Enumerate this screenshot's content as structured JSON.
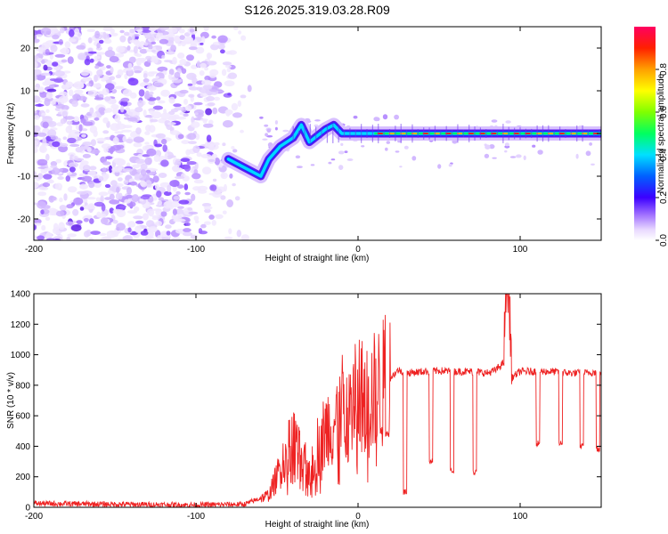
{
  "title": "S126.2025.319.03.28.R09",
  "chart_data": [
    {
      "id": "spectrogram",
      "type": "heatmap",
      "xlabel": "Height of straight line (km)",
      "ylabel": "Frequency (Hz)",
      "xlim": [
        -200,
        150
      ],
      "ylim": [
        -25,
        25
      ],
      "xticks": [
        -200,
        -100,
        0,
        100
      ],
      "yticks": [
        -20,
        -10,
        0,
        10,
        20
      ],
      "colorbar": {
        "label": "Normalized spectral amplitude",
        "range": [
          0,
          1
        ],
        "ticks": [
          0.0,
          0.2,
          0.4,
          0.6,
          0.8
        ],
        "tick_labels": [
          "0.0",
          "0.2",
          "0.4",
          "0.6",
          "0.8"
        ]
      },
      "noise_region": {
        "x_range": [
          -200,
          -65
        ],
        "y_range": [
          -25,
          25
        ],
        "amplitude_range": [
          0.0,
          0.15
        ]
      },
      "signal_track": [
        {
          "x": -80,
          "y": -6
        },
        {
          "x": -70,
          "y": -8
        },
        {
          "x": -60,
          "y": -10
        },
        {
          "x": -55,
          "y": -6
        },
        {
          "x": -48,
          "y": -3
        },
        {
          "x": -40,
          "y": -1
        },
        {
          "x": -35,
          "y": 2
        },
        {
          "x": -30,
          "y": -2
        },
        {
          "x": -20,
          "y": 1
        },
        {
          "x": -15,
          "y": 2
        },
        {
          "x": -10,
          "y": 0
        },
        {
          "x": 0,
          "y": 0
        },
        {
          "x": 10,
          "y": 0
        },
        {
          "x": 88,
          "y": 0
        },
        {
          "x": 150,
          "y": 0
        }
      ]
    },
    {
      "id": "snr",
      "type": "line",
      "xlabel": "Height of straight line (km)",
      "ylabel": "SNR (10 * v/v)",
      "xlim": [
        -200,
        150
      ],
      "ylim": [
        0,
        1400
      ],
      "xticks": [
        -200,
        -100,
        0,
        100
      ],
      "yticks": [
        0,
        200,
        400,
        600,
        800,
        1000,
        1200,
        1400
      ],
      "series": [
        {
          "name": "SNR",
          "color": "#ee2222",
          "x": [
            -200,
            -150,
            -100,
            -70,
            -55,
            -50,
            -45,
            -40,
            -35,
            -30,
            -25,
            -20,
            -15,
            -10,
            -5,
            0,
            5,
            10,
            15,
            20,
            25,
            30,
            40,
            50,
            60,
            70,
            80,
            85,
            90,
            92,
            95,
            100,
            110,
            120,
            130,
            140,
            150
          ],
          "y": [
            25,
            20,
            15,
            20,
            80,
            200,
            350,
            450,
            300,
            250,
            400,
            500,
            550,
            650,
            700,
            750,
            700,
            750,
            800,
            850,
            900,
            880,
            890,
            895,
            890,
            890,
            880,
            900,
            950,
            1400,
            850,
            890,
            890,
            890,
            880,
            880,
            890
          ]
        }
      ],
      "dropouts": [
        {
          "x": [
            17,
            19
          ],
          "level": 480
        },
        {
          "x": [
            28,
            30
          ],
          "level": 100
        },
        {
          "x": [
            44,
            46
          ],
          "level": 300
        },
        {
          "x": [
            57,
            59
          ],
          "level": 240
        },
        {
          "x": [
            71,
            73
          ],
          "level": 230
        },
        {
          "x": [
            110,
            112
          ],
          "level": 420
        },
        {
          "x": [
            124,
            126
          ],
          "level": 420
        },
        {
          "x": [
            137,
            139
          ],
          "level": 400
        },
        {
          "x": [
            147,
            149
          ],
          "level": 380
        }
      ]
    }
  ]
}
